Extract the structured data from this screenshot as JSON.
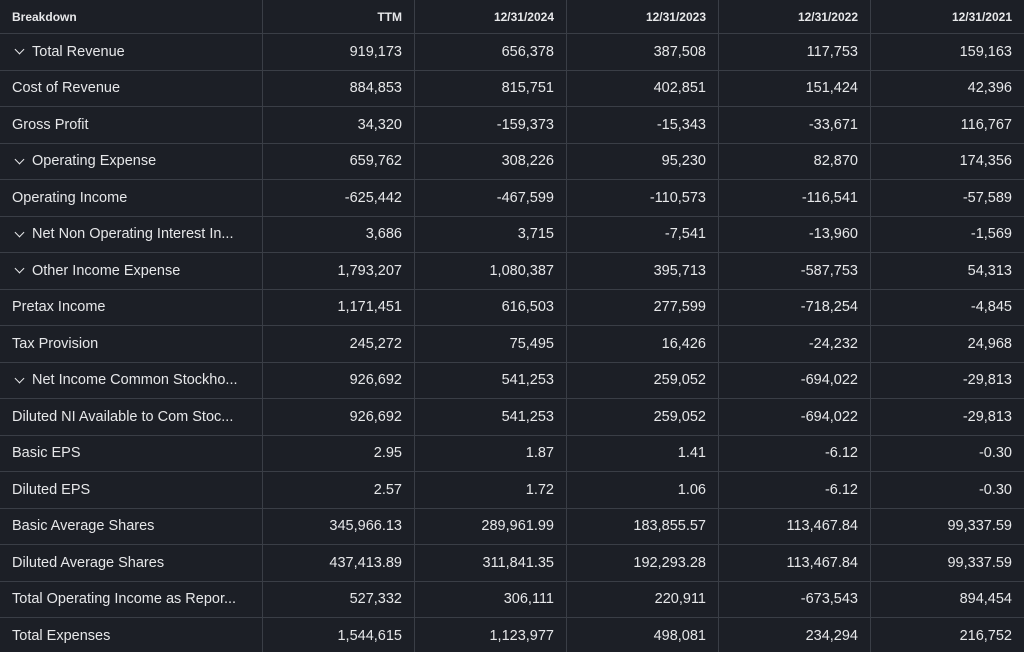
{
  "table": {
    "header": [
      "Breakdown",
      "TTM",
      "12/31/2024",
      "12/31/2023",
      "12/31/2022",
      "12/31/2021"
    ],
    "rows": [
      {
        "label": "Total Revenue",
        "expandable": true,
        "values": [
          "919,173",
          "656,378",
          "387,508",
          "117,753",
          "159,163"
        ]
      },
      {
        "label": "Cost of Revenue",
        "values": [
          "884,853",
          "815,751",
          "402,851",
          "151,424",
          "42,396"
        ]
      },
      {
        "label": "Gross Profit",
        "values": [
          "34,320",
          "-159,373",
          "-15,343",
          "-33,671",
          "116,767"
        ]
      },
      {
        "label": "Operating Expense",
        "expandable": true,
        "values": [
          "659,762",
          "308,226",
          "95,230",
          "82,870",
          "174,356"
        ]
      },
      {
        "label": "Operating Income",
        "values": [
          "-625,442",
          "-467,599",
          "-110,573",
          "-116,541",
          "-57,589"
        ]
      },
      {
        "label": "Net Non Operating Interest In...",
        "expandable": true,
        "values": [
          "3,686",
          "3,715",
          "-7,541",
          "-13,960",
          "-1,569"
        ]
      },
      {
        "label": "Other Income Expense",
        "expandable": true,
        "values": [
          "1,793,207",
          "1,080,387",
          "395,713",
          "-587,753",
          "54,313"
        ]
      },
      {
        "label": "Pretax Income",
        "values": [
          "1,171,451",
          "616,503",
          "277,599",
          "-718,254",
          "-4,845"
        ]
      },
      {
        "label": "Tax Provision",
        "values": [
          "245,272",
          "75,495",
          "16,426",
          "-24,232",
          "24,968"
        ]
      },
      {
        "label": "Net Income Common Stockho...",
        "expandable": true,
        "values": [
          "926,692",
          "541,253",
          "259,052",
          "-694,022",
          "-29,813"
        ]
      },
      {
        "label": "Diluted NI Available to Com Stoc...",
        "values": [
          "926,692",
          "541,253",
          "259,052",
          "-694,022",
          "-29,813"
        ]
      },
      {
        "label": "Basic EPS",
        "values": [
          "2.95",
          "1.87",
          "1.41",
          "-6.12",
          "-0.30"
        ]
      },
      {
        "label": "Diluted EPS",
        "values": [
          "2.57",
          "1.72",
          "1.06",
          "-6.12",
          "-0.30"
        ]
      },
      {
        "label": "Basic Average Shares",
        "values": [
          "345,966.13",
          "289,961.99",
          "183,855.57",
          "113,467.84",
          "99,337.59"
        ]
      },
      {
        "label": "Diluted Average Shares",
        "values": [
          "437,413.89",
          "311,841.35",
          "192,293.28",
          "113,467.84",
          "99,337.59"
        ]
      },
      {
        "label": "Total Operating Income as Repor...",
        "values": [
          "527,332",
          "306,111",
          "220,911",
          "-673,543",
          "894,454"
        ]
      },
      {
        "label": "Total Expenses",
        "values": [
          "1,544,615",
          "1,123,977",
          "498,081",
          "234,294",
          "216,752"
        ]
      }
    ]
  }
}
